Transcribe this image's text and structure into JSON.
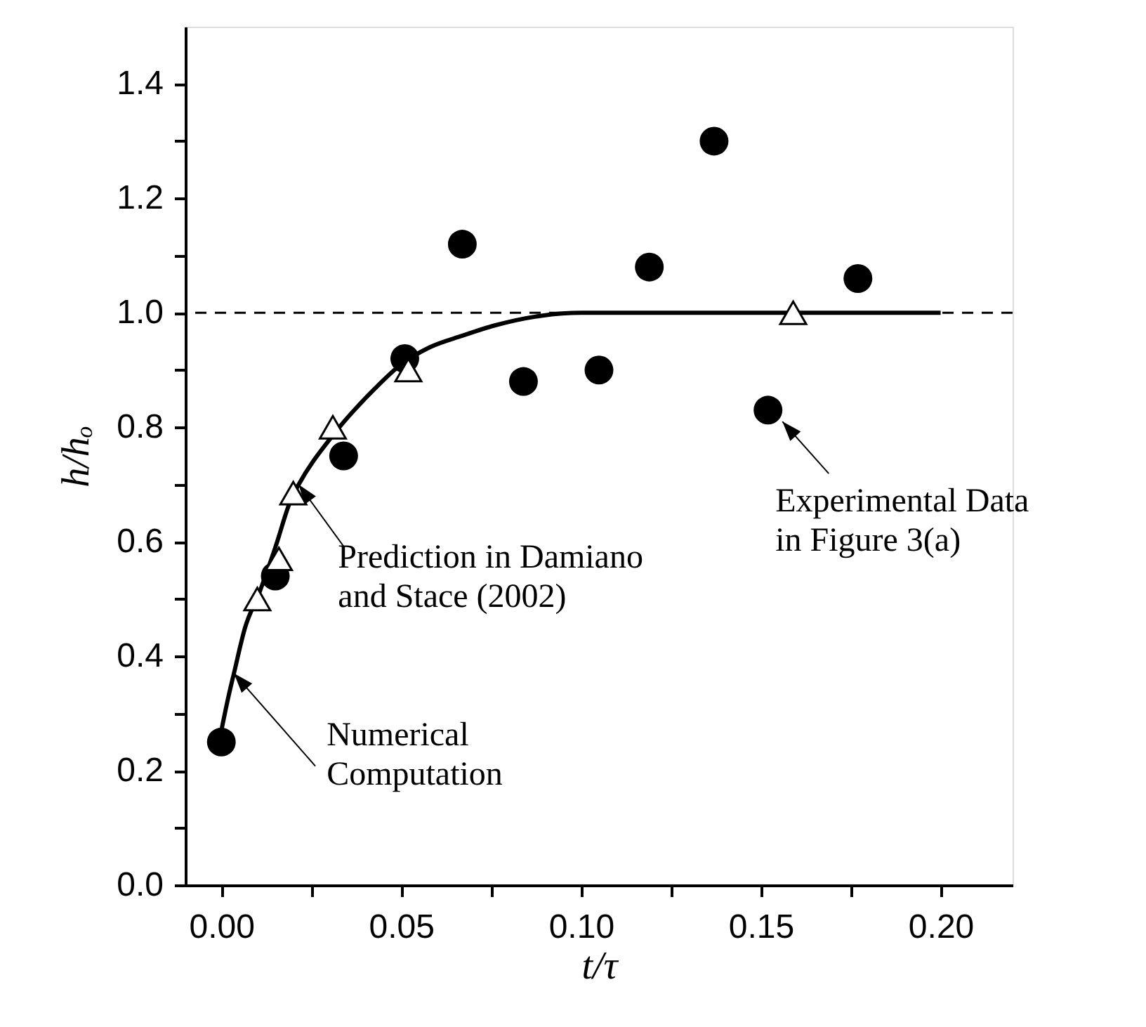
{
  "chart_data": {
    "type": "scatter",
    "xlabel": "t/τ",
    "ylabel": "h/hₒ",
    "xlim": [
      -0.01,
      0.22
    ],
    "ylim": [
      0,
      1.5
    ],
    "xticks": [
      {
        "value": 0,
        "label": "0.00"
      },
      {
        "value": 0.025,
        "label": null
      },
      {
        "value": 0.05,
        "label": "0.05"
      },
      {
        "value": 0.075,
        "label": null
      },
      {
        "value": 0.1,
        "label": "0.10"
      },
      {
        "value": 0.125,
        "label": null
      },
      {
        "value": 0.15,
        "label": "0.15"
      },
      {
        "value": 0.175,
        "label": null
      },
      {
        "value": 0.2,
        "label": "0.20"
      }
    ],
    "yticks": [
      {
        "value": 0,
        "label": "0.0"
      },
      {
        "value": 0.1,
        "label": null
      },
      {
        "value": 0.2,
        "label": "0.2"
      },
      {
        "value": 0.3,
        "label": null
      },
      {
        "value": 0.4,
        "label": "0.4"
      },
      {
        "value": 0.5,
        "label": null
      },
      {
        "value": 0.6,
        "label": "0.6"
      },
      {
        "value": 0.7,
        "label": null
      },
      {
        "value": 0.8,
        "label": "0.8"
      },
      {
        "value": 0.9,
        "label": null
      },
      {
        "value": 1.0,
        "label": "1.0"
      },
      {
        "value": 1.1,
        "label": null
      },
      {
        "value": 1.2,
        "label": "1.2"
      },
      {
        "value": 1.3,
        "label": null
      },
      {
        "value": 1.4,
        "label": "1.4"
      }
    ],
    "grid": false,
    "series": [
      {
        "type": "line",
        "color": "#000000",
        "marker": "none",
        "line_style": "solid",
        "x": [
          0,
          0.002,
          0.0035,
          0.0066,
          0.0105,
          0.015,
          0.0195,
          0.0215,
          0.031,
          0.0426,
          0.05,
          0.058,
          0.067,
          0.076,
          0.089,
          0.1,
          0.2
        ],
        "values": [
          0.27,
          0.33,
          0.37,
          0.45,
          0.51,
          0.59,
          0.676,
          0.7,
          0.786,
          0.867,
          0.91,
          0.94,
          0.96,
          0.978,
          0.995,
          1.0,
          1.0
        ]
      },
      {
        "color": "#000000",
        "marker": "circle",
        "x": [
          0,
          0.015,
          0.034,
          0.051,
          0.067,
          0.084,
          0.105,
          0.119,
          0.137,
          0.152,
          0.177
        ],
        "values": [
          0.25,
          0.54,
          0.75,
          0.92,
          1.12,
          0.88,
          0.9,
          1.08,
          1.3,
          0.83,
          1.06
        ]
      },
      {
        "color": "#000000",
        "marker": "triangle",
        "x": [
          0.01,
          0.016,
          0.02,
          0.031,
          0.052,
          0.159
        ],
        "values": [
          0.5,
          0.57,
          0.685,
          0.8,
          0.9,
          1.0
        ]
      }
    ],
    "ref_lines": [
      {
        "axis": "y",
        "value": 1.0,
        "line_style": "dashed",
        "color": "#000000"
      }
    ],
    "annotations": [
      {
        "text": "Numerical\nComputation",
        "x": 0.0035,
        "y": 0.37
      },
      {
        "text": "Prediction in Damiano\nand Stace (2002)",
        "x": 0.0215,
        "y": 0.7
      },
      {
        "text": "Experimental Data\nin Figure 3(a)",
        "x": 0.156,
        "y": 0.81
      }
    ]
  }
}
